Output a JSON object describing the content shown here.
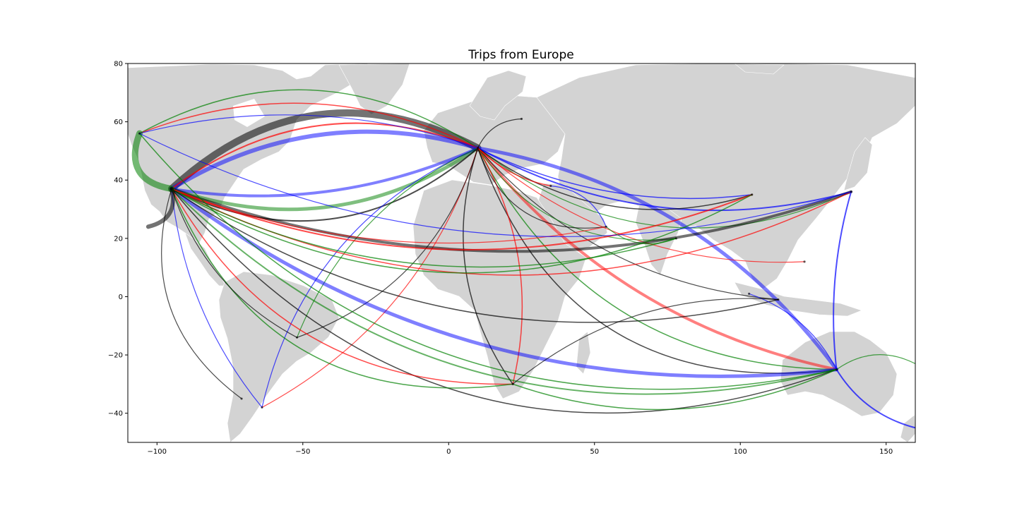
{
  "chart_data": {
    "type": "map",
    "title": "Trips from Europe",
    "xlabel": "",
    "ylabel": "",
    "xlim": [
      -110,
      160
    ],
    "ylim": [
      -50,
      80
    ],
    "x_ticks": [
      -100,
      -50,
      0,
      50,
      100,
      150
    ],
    "y_ticks": [
      -40,
      -20,
      0,
      20,
      40,
      60,
      80
    ],
    "x_tick_labels": [
      "−100",
      "−50",
      "0",
      "50",
      "100",
      "150"
    ],
    "y_tick_labels": [
      "−40",
      "−20",
      "0",
      "20",
      "40",
      "60",
      "80"
    ],
    "grid": false,
    "legend": "none",
    "land_color": "#d3d3d3",
    "route_colors": [
      "#ff0000",
      "#0000ff",
      "#008000",
      "#000000"
    ],
    "hubs": [
      {
        "lon": -95,
        "lat": 37
      },
      {
        "lon": -106,
        "lat": 56
      },
      {
        "lon": 10,
        "lat": 51
      },
      {
        "lon": 133,
        "lat": -25
      },
      {
        "lon": 138,
        "lat": 36
      },
      {
        "lon": 104,
        "lat": 35
      },
      {
        "lon": 22,
        "lat": -30
      },
      {
        "lon": -64,
        "lat": -38
      },
      {
        "lon": -71,
        "lat": -35
      },
      {
        "lon": -52,
        "lat": -14
      },
      {
        "lon": 113,
        "lat": -1
      },
      {
        "lon": 103,
        "lat": 1
      },
      {
        "lon": 122,
        "lat": 12
      },
      {
        "lon": 78,
        "lat": 20
      },
      {
        "lon": 54,
        "lat": 24
      },
      {
        "lon": 35,
        "lat": 38
      },
      {
        "lon": 25,
        "lat": 61
      }
    ],
    "routes": [
      {
        "from": [
          10,
          51
        ],
        "to": [
          -95,
          37
        ],
        "color": "#000000",
        "width": 10,
        "alpha": 0.55,
        "bend": 0.35
      },
      {
        "from": [
          10,
          51
        ],
        "to": [
          -95,
          37
        ],
        "color": "#0000ff",
        "width": 6,
        "alpha": 0.5,
        "bend": 0.22
      },
      {
        "from": [
          10,
          51
        ],
        "to": [
          -95,
          37
        ],
        "color": "#008000",
        "width": 5,
        "alpha": 0.5,
        "bend": -0.25
      },
      {
        "from": [
          10,
          51
        ],
        "to": [
          -95,
          37
        ],
        "color": "#0000ff",
        "width": 4,
        "alpha": 0.5,
        "bend": -0.15
      },
      {
        "from": [
          10,
          51
        ],
        "to": [
          -95,
          37
        ],
        "color": "#ff0000",
        "width": 2,
        "alpha": 0.7,
        "bend": 0.28
      },
      {
        "from": [
          10,
          51
        ],
        "to": [
          -95,
          37
        ],
        "color": "#000000",
        "width": 2,
        "alpha": 0.7,
        "bend": -0.33
      },
      {
        "from": [
          10,
          51
        ],
        "to": [
          -106,
          56
        ],
        "color": "#008000",
        "width": 1.5,
        "alpha": 0.7,
        "bend": 0.3
      },
      {
        "from": [
          10,
          51
        ],
        "to": [
          -106,
          56
        ],
        "color": "#ff0000",
        "width": 1.5,
        "alpha": 0.7,
        "bend": 0.22
      },
      {
        "from": [
          10,
          51
        ],
        "to": [
          -106,
          56
        ],
        "color": "#0000ff",
        "width": 1.2,
        "alpha": 0.7,
        "bend": 0.15
      },
      {
        "from": [
          10,
          51
        ],
        "to": [
          133,
          -25
        ],
        "color": "#0000ff",
        "width": 5,
        "alpha": 0.5,
        "bend": -0.2
      },
      {
        "from": [
          10,
          51
        ],
        "to": [
          133,
          -25
        ],
        "color": "#ff0000",
        "width": 4,
        "alpha": 0.5,
        "bend": 0.18
      },
      {
        "from": [
          10,
          51
        ],
        "to": [
          133,
          -25
        ],
        "color": "#008000",
        "width": 1.5,
        "alpha": 0.7,
        "bend": 0.3
      },
      {
        "from": [
          10,
          51
        ],
        "to": [
          133,
          -25
        ],
        "color": "#000000",
        "width": 1.5,
        "alpha": 0.7,
        "bend": 0.4
      },
      {
        "from": [
          10,
          51
        ],
        "to": [
          138,
          36
        ],
        "color": "#0000ff",
        "width": 2,
        "alpha": 0.7,
        "bend": 0.2
      },
      {
        "from": [
          10,
          51
        ],
        "to": [
          138,
          36
        ],
        "color": "#008000",
        "width": 1.2,
        "alpha": 0.7,
        "bend": 0.3
      },
      {
        "from": [
          10,
          51
        ],
        "to": [
          104,
          35
        ],
        "color": "#0000ff",
        "width": 1.5,
        "alpha": 0.7,
        "bend": 0.15
      },
      {
        "from": [
          10,
          51
        ],
        "to": [
          104,
          35
        ],
        "color": "#000000",
        "width": 1.5,
        "alpha": 0.7,
        "bend": 0.25
      },
      {
        "from": [
          10,
          51
        ],
        "to": [
          22,
          -30
        ],
        "color": "#000000",
        "width": 1.5,
        "alpha": 0.7,
        "bend": 0.25
      },
      {
        "from": [
          10,
          51
        ],
        "to": [
          22,
          -30
        ],
        "color": "#ff0000",
        "width": 1.5,
        "alpha": 0.7,
        "bend": -0.2
      },
      {
        "from": [
          10,
          51
        ],
        "to": [
          -64,
          -38
        ],
        "color": "#0000ff",
        "width": 1.2,
        "alpha": 0.7,
        "bend": 0.25
      },
      {
        "from": [
          10,
          51
        ],
        "to": [
          -64,
          -38
        ],
        "color": "#ff0000",
        "width": 1.2,
        "alpha": 0.7,
        "bend": -0.2
      },
      {
        "from": [
          10,
          51
        ],
        "to": [
          -52,
          -14
        ],
        "color": "#008000",
        "width": 1.2,
        "alpha": 0.7,
        "bend": 0.2
      },
      {
        "from": [
          10,
          51
        ],
        "to": [
          -52,
          -14
        ],
        "color": "#000000",
        "width": 1.2,
        "alpha": 0.7,
        "bend": -0.25
      },
      {
        "from": [
          10,
          51
        ],
        "to": [
          113,
          -1
        ],
        "color": "#000000",
        "width": 1.2,
        "alpha": 0.7,
        "bend": 0.2
      },
      {
        "from": [
          10,
          51
        ],
        "to": [
          122,
          12
        ],
        "color": "#ff0000",
        "width": 1.2,
        "alpha": 0.7,
        "bend": 0.2
      },
      {
        "from": [
          10,
          51
        ],
        "to": [
          78,
          20
        ],
        "color": "#008000",
        "width": 1.2,
        "alpha": 0.7,
        "bend": 0.3
      },
      {
        "from": [
          10,
          51
        ],
        "to": [
          54,
          24
        ],
        "color": "#000000",
        "width": 1.2,
        "alpha": 0.7,
        "bend": 0.4
      },
      {
        "from": [
          10,
          51
        ],
        "to": [
          35,
          38
        ],
        "color": "#ff0000",
        "width": 1.5,
        "alpha": 0.7,
        "bend": 0.15
      },
      {
        "from": [
          10,
          51
        ],
        "to": [
          25,
          61
        ],
        "color": "#000000",
        "width": 1.2,
        "alpha": 0.7,
        "bend": -0.3
      },
      {
        "from": [
          -95,
          37
        ],
        "to": [
          133,
          -25
        ],
        "color": "#0000ff",
        "width": 5,
        "alpha": 0.5,
        "bend": 0.2
      },
      {
        "from": [
          -95,
          37
        ],
        "to": [
          133,
          -25
        ],
        "color": "#008000",
        "width": 2,
        "alpha": 0.6,
        "bend": 0.28
      },
      {
        "from": [
          -95,
          37
        ],
        "to": [
          133,
          -25
        ],
        "color": "#000000",
        "width": 1.5,
        "alpha": 0.7,
        "bend": 0.35
      },
      {
        "from": [
          -95,
          37
        ],
        "to": [
          138,
          36
        ],
        "color": "#000000",
        "width": 4,
        "alpha": 0.55,
        "bend": 0.18
      },
      {
        "from": [
          -95,
          37
        ],
        "to": [
          138,
          36
        ],
        "color": "#ff0000",
        "width": 1.5,
        "alpha": 0.7,
        "bend": 0.25
      },
      {
        "from": [
          -95,
          37
        ],
        "to": [
          104,
          35
        ],
        "color": "#ff0000",
        "width": 2,
        "alpha": 0.7,
        "bend": 0.2
      },
      {
        "from": [
          -95,
          37
        ],
        "to": [
          104,
          35
        ],
        "color": "#008000",
        "width": 1.5,
        "alpha": 0.7,
        "bend": 0.28
      },
      {
        "from": [
          -95,
          37
        ],
        "to": [
          22,
          -30
        ],
        "color": "#ff0000",
        "width": 1.5,
        "alpha": 0.7,
        "bend": 0.3
      },
      {
        "from": [
          -95,
          37
        ],
        "to": [
          22,
          -30
        ],
        "color": "#008000",
        "width": 1.5,
        "alpha": 0.7,
        "bend": 0.38
      },
      {
        "from": [
          -95,
          37
        ],
        "to": [
          -64,
          -38
        ],
        "color": "#0000ff",
        "width": 1.2,
        "alpha": 0.7,
        "bend": 0.15
      },
      {
        "from": [
          -95,
          37
        ],
        "to": [
          -52,
          -14
        ],
        "color": "#000000",
        "width": 1.2,
        "alpha": 0.7,
        "bend": 0.2
      },
      {
        "from": [
          -95,
          37
        ],
        "to": [
          -71,
          -35
        ],
        "color": "#000000",
        "width": 1.2,
        "alpha": 0.7,
        "bend": 0.35
      },
      {
        "from": [
          -95,
          37
        ],
        "to": [
          78,
          20
        ],
        "color": "#008000",
        "width": 1.5,
        "alpha": 0.7,
        "bend": 0.2
      },
      {
        "from": [
          -95,
          37
        ],
        "to": [
          113,
          -1
        ],
        "color": "#000000",
        "width": 1.5,
        "alpha": 0.7,
        "bend": 0.22
      },
      {
        "from": [
          -95,
          37
        ],
        "to": [
          54,
          24
        ],
        "color": "#ff0000",
        "width": 1.2,
        "alpha": 0.7,
        "bend": 0.15
      },
      {
        "from": [
          -106,
          56
        ],
        "to": [
          -95,
          37
        ],
        "color": "#008000",
        "width": 9,
        "alpha": 0.55,
        "bend": 0.6
      },
      {
        "from": [
          -95,
          37
        ],
        "to": [
          -103,
          24
        ],
        "color": "#000000",
        "width": 6,
        "alpha": 0.55,
        "bend": -0.5
      },
      {
        "from": [
          -106,
          56
        ],
        "to": [
          133,
          -25
        ],
        "color": "#008000",
        "width": 1.5,
        "alpha": 0.7,
        "bend": 0.3
      },
      {
        "from": [
          -106,
          56
        ],
        "to": [
          138,
          36
        ],
        "color": "#0000ff",
        "width": 1.2,
        "alpha": 0.7,
        "bend": 0.2
      },
      {
        "from": [
          133,
          -25
        ],
        "to": [
          160,
          -45
        ],
        "color": "#0000ff",
        "width": 2,
        "alpha": 0.7,
        "bend": 0.2
      },
      {
        "from": [
          133,
          -25
        ],
        "to": [
          103,
          1
        ],
        "color": "#0000ff",
        "width": 1.2,
        "alpha": 0.7,
        "bend": 0.2
      },
      {
        "from": [
          133,
          -25
        ],
        "to": [
          160,
          -23
        ],
        "color": "#008000",
        "width": 1.2,
        "alpha": 0.7,
        "bend": -0.3
      },
      {
        "from": [
          138,
          36
        ],
        "to": [
          133,
          -25
        ],
        "color": "#0000ff",
        "width": 2,
        "alpha": 0.7,
        "bend": 0.1
      },
      {
        "from": [
          22,
          -30
        ],
        "to": [
          133,
          -25
        ],
        "color": "#008000",
        "width": 1.5,
        "alpha": 0.7,
        "bend": 0.2
      },
      {
        "from": [
          22,
          -30
        ],
        "to": [
          113,
          -1
        ],
        "color": "#000000",
        "width": 1.2,
        "alpha": 0.7,
        "bend": -0.2
      },
      {
        "from": [
          54,
          24
        ],
        "to": [
          78,
          20
        ],
        "color": "#008000",
        "width": 1.2,
        "alpha": 0.7,
        "bend": 0.3
      },
      {
        "from": [
          35,
          38
        ],
        "to": [
          54,
          24
        ],
        "color": "#0000ff",
        "width": 1.2,
        "alpha": 0.7,
        "bend": -0.3
      }
    ]
  }
}
